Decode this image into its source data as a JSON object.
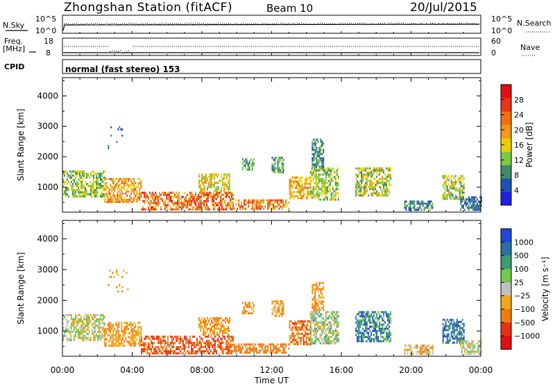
{
  "header": {
    "station": "Zhongshan Station (fitACF)",
    "beam": "Beam 10",
    "date": "20/Jul/2015",
    "cpid_label": "CPID",
    "cpid_text": "normal (fast stereo) 153"
  },
  "top_panels": {
    "nsky": {
      "left_label": "N.Sky",
      "left_ticks": [
        "10^5",
        "10^0"
      ],
      "right_label": "N.Search",
      "right_ticks": [
        "10^5",
        "10^0"
      ]
    },
    "freq": {
      "left_label_1": "Freq.",
      "left_label_2": "[MHz]",
      "left_ticks": [
        "18",
        "8"
      ],
      "right_label": "Nave",
      "right_ticks": [
        "60",
        "0"
      ]
    }
  },
  "colors": {
    "power": [
      "#2020e0",
      "#2050b0",
      "#3c8c6c",
      "#7cc840",
      "#e8d000",
      "#f09818",
      "#f07010",
      "#e83418",
      "#e01010"
    ],
    "velocity": [
      "#2048d8",
      "#2c70a0",
      "#3c9c70",
      "#70c850",
      "#c0c0c0",
      "#f0a818",
      "#f07c10",
      "#e83018",
      "#e01010"
    ]
  },
  "chart_data": [
    {
      "type": "heatmap",
      "name": "power",
      "ylabel": "Slant Range [km]",
      "yticks": [
        1000,
        2000,
        3000,
        4000
      ],
      "ylim": [
        180,
        4600
      ],
      "xlim": [
        0,
        24
      ],
      "colorbar": {
        "label": "Power [dB]",
        "ticks": [
          4,
          8,
          12,
          16,
          20,
          24,
          28
        ],
        "range": [
          0,
          32
        ]
      },
      "regions": [
        {
          "x": [
            0.0,
            2.4
          ],
          "y": [
            700,
            1550
          ],
          "level": [
            8,
            18
          ]
        },
        {
          "x": [
            2.4,
            4.5
          ],
          "y": [
            500,
            1300
          ],
          "level": [
            14,
            26
          ]
        },
        {
          "x": [
            4.5,
            9.8
          ],
          "y": [
            280,
            850
          ],
          "level": [
            16,
            30
          ]
        },
        {
          "x": [
            7.8,
            9.6
          ],
          "y": [
            850,
            1450
          ],
          "level": [
            10,
            20
          ]
        },
        {
          "x": [
            9.6,
            13.0
          ],
          "y": [
            300,
            600
          ],
          "level": [
            16,
            28
          ]
        },
        {
          "x": [
            13.0,
            14.2
          ],
          "y": [
            600,
            1350
          ],
          "level": [
            14,
            24
          ]
        },
        {
          "x": [
            10.3,
            11.0
          ],
          "y": [
            1550,
            1950
          ],
          "level": [
            6,
            14
          ]
        },
        {
          "x": [
            12.0,
            12.7
          ],
          "y": [
            1500,
            2000
          ],
          "level": [
            6,
            14
          ]
        },
        {
          "x": [
            14.2,
            15.8
          ],
          "y": [
            600,
            1650
          ],
          "level": [
            8,
            18
          ]
        },
        {
          "x": [
            14.3,
            15.0
          ],
          "y": [
            1700,
            2600
          ],
          "level": [
            4,
            12
          ]
        },
        {
          "x": [
            16.8,
            18.8
          ],
          "y": [
            700,
            1650
          ],
          "level": [
            8,
            20
          ]
        },
        {
          "x": [
            19.6,
            21.2
          ],
          "y": [
            260,
            560
          ],
          "level": [
            4,
            12
          ]
        },
        {
          "x": [
            21.8,
            23.0
          ],
          "y": [
            600,
            1400
          ],
          "level": [
            8,
            20
          ]
        },
        {
          "x": [
            22.8,
            24.0
          ],
          "y": [
            260,
            700
          ],
          "level": [
            4,
            10
          ]
        },
        {
          "x": [
            2.6,
            3.8
          ],
          "y": [
            2300,
            3000
          ],
          "level": [
            4,
            10
          ]
        }
      ]
    },
    {
      "type": "heatmap",
      "name": "velocity",
      "ylabel": "Slant Range [km]",
      "yticks": [
        1000,
        2000,
        3000,
        4000
      ],
      "ylim": [
        180,
        4600
      ],
      "xlim": [
        0,
        24
      ],
      "xticks": [
        "00:00",
        "04:00",
        "08:00",
        "12:00",
        "16:00",
        "20:00",
        "00:00"
      ],
      "xlabel": "Time UT",
      "colorbar": {
        "label": "Velocity [m s⁻¹]",
        "ticks": [
          "1000",
          "500",
          "100",
          "25",
          "−25",
          "−100",
          "−500",
          "−1000"
        ]
      },
      "regions": [
        {
          "x": [
            0.0,
            2.4
          ],
          "y": [
            700,
            1550
          ],
          "level": [
            3,
            6
          ]
        },
        {
          "x": [
            2.4,
            4.5
          ],
          "y": [
            500,
            1300
          ],
          "level": [
            5,
            7
          ]
        },
        {
          "x": [
            4.5,
            9.8
          ],
          "y": [
            280,
            850
          ],
          "level": [
            6,
            8
          ]
        },
        {
          "x": [
            7.8,
            9.6
          ],
          "y": [
            850,
            1450
          ],
          "level": [
            5,
            7
          ]
        },
        {
          "x": [
            9.6,
            13.0
          ],
          "y": [
            300,
            600
          ],
          "level": [
            6,
            7
          ]
        },
        {
          "x": [
            13.0,
            14.2
          ],
          "y": [
            600,
            1350
          ],
          "level": [
            5,
            8
          ]
        },
        {
          "x": [
            10.3,
            11.0
          ],
          "y": [
            1550,
            1950
          ],
          "level": [
            5,
            7
          ]
        },
        {
          "x": [
            12.0,
            12.7
          ],
          "y": [
            1500,
            2000
          ],
          "level": [
            5,
            7
          ]
        },
        {
          "x": [
            14.2,
            15.8
          ],
          "y": [
            600,
            1650
          ],
          "level": [
            2,
            6
          ]
        },
        {
          "x": [
            14.3,
            15.0
          ],
          "y": [
            1700,
            2600
          ],
          "level": [
            5,
            7
          ]
        },
        {
          "x": [
            16.8,
            18.8
          ],
          "y": [
            700,
            1650
          ],
          "level": [
            0,
            4
          ]
        },
        {
          "x": [
            19.6,
            21.2
          ],
          "y": [
            260,
            560
          ],
          "level": [
            4,
            7
          ]
        },
        {
          "x": [
            21.8,
            23.0
          ],
          "y": [
            600,
            1400
          ],
          "level": [
            0,
            3
          ]
        },
        {
          "x": [
            22.8,
            24.0
          ],
          "y": [
            260,
            700
          ],
          "level": [
            3,
            6
          ]
        },
        {
          "x": [
            2.6,
            3.8
          ],
          "y": [
            2300,
            3000
          ],
          "level": [
            5,
            7
          ]
        }
      ]
    }
  ]
}
